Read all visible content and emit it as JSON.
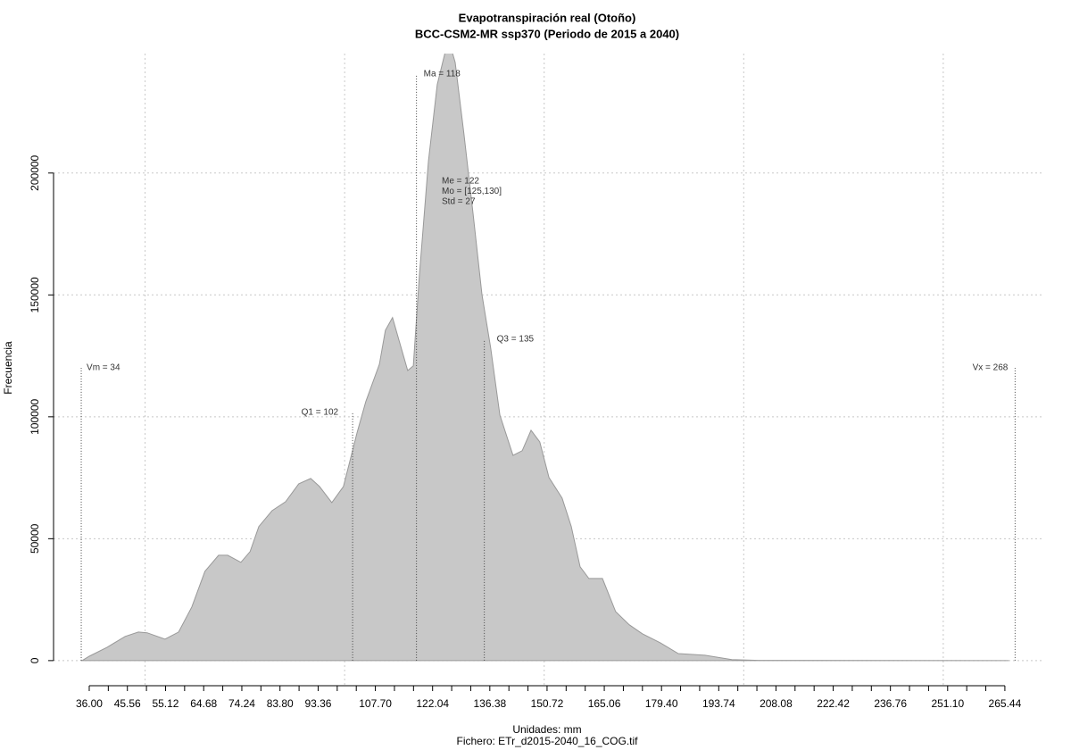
{
  "chart_data": {
    "type": "area",
    "title": "Evapotranspiración real (Otoño)",
    "subtitle": "BCC-CSM2-MR ssp370 (Periodo de 2015 a 2040)",
    "xlabel": "Unidades: mm",
    "footer": "Fichero: ETr_d2015-2040_16_COG.tif",
    "ylabel": "Frecuencia",
    "color": "#c8c8c8",
    "line_color": "#999999",
    "grid": true,
    "xlim": [
      27.06,
      275.3
    ],
    "ylim": [
      -10300,
      249000
    ],
    "yticks": [
      0,
      50000,
      100000,
      150000,
      200000
    ],
    "xgrid": [
      50,
      100,
      150,
      200,
      250
    ],
    "xticks": [
      {
        "value": 36.0,
        "label": "36.00"
      },
      {
        "value": 45.56,
        "label": "45.56"
      },
      {
        "value": 55.12,
        "label": "55.12"
      },
      {
        "value": 64.68,
        "label": "64.68"
      },
      {
        "value": 74.24,
        "label": "74.24"
      },
      {
        "value": 83.8,
        "label": "83.80"
      },
      {
        "value": 93.36,
        "label": "93.36"
      },
      {
        "value": 107.7,
        "label": "107.70"
      },
      {
        "value": 122.04,
        "label": "122.04"
      },
      {
        "value": 136.38,
        "label": "136.38"
      },
      {
        "value": 150.72,
        "label": "150.72"
      },
      {
        "value": 165.06,
        "label": "165.06"
      },
      {
        "value": 179.4,
        "label": "179.40"
      },
      {
        "value": 193.74,
        "label": "193.74"
      },
      {
        "value": 208.08,
        "label": "208.08"
      },
      {
        "value": 222.42,
        "label": "222.42"
      },
      {
        "value": 236.76,
        "label": "236.76"
      },
      {
        "value": 251.1,
        "label": "251.10"
      },
      {
        "value": 265.44,
        "label": "265.44"
      }
    ],
    "xminorticks": [
      40.78,
      50.34,
      59.9,
      69.46,
      79.02,
      88.58,
      98.14,
      102.92,
      112.48,
      117.26,
      126.82,
      131.6,
      141.16,
      145.94,
      155.5,
      160.28,
      169.84,
      174.62,
      184.18,
      188.96,
      198.52,
      203.3,
      212.86,
      217.64,
      227.2,
      231.98,
      241.54,
      246.32,
      255.88,
      260.66
    ],
    "density": {
      "x": [
        34.2,
        36,
        40.5,
        45,
        48.3,
        50.5,
        55,
        58.4,
        61.7,
        65,
        68.4,
        70.7,
        74,
        76.3,
        78.5,
        81.8,
        85.2,
        88.5,
        91.5,
        93.7,
        96.8,
        99.7,
        103.1,
        105.3,
        108.7,
        110.2,
        112,
        114.3,
        115.8,
        117.2,
        118.7,
        121,
        123.2,
        126,
        127.7,
        129.9,
        132.2,
        134.4,
        136.6,
        138.9,
        142.2,
        144.5,
        146.7,
        148.9,
        151.2,
        154.5,
        156.8,
        159,
        161.2,
        164.6,
        167.9,
        171.3,
        174.6,
        179.1,
        183.6,
        190.3,
        197,
        203.7,
        266.3
      ],
      "y": [
        0,
        1800,
        5500,
        9900,
        11700,
        11400,
        8800,
        11700,
        22000,
        36600,
        43200,
        43200,
        40300,
        44700,
        55000,
        61500,
        65200,
        72500,
        74700,
        71400,
        64800,
        71400,
        93400,
        106200,
        121600,
        135500,
        140700,
        127500,
        119000,
        120900,
        157500,
        205100,
        236300,
        255000,
        245400,
        216100,
        183200,
        150200,
        128200,
        100700,
        84200,
        86100,
        94500,
        89700,
        75100,
        66700,
        55000,
        38500,
        33700,
        33700,
        20100,
        14700,
        11000,
        7300,
        2900,
        2200,
        400,
        100,
        0
      ]
    },
    "stats": [
      {
        "label": "Vm = 34",
        "value": 34
      },
      {
        "label": "Q1 = 102",
        "value": 102
      },
      {
        "label": "Ma = 118",
        "value": 118
      },
      {
        "label": "Q3 = 135",
        "value": 135
      },
      {
        "label": "Vx = 268",
        "value": 268
      }
    ],
    "annotations": [
      "Me = 122",
      "Mo = [125,130]",
      "Std = 27"
    ]
  }
}
